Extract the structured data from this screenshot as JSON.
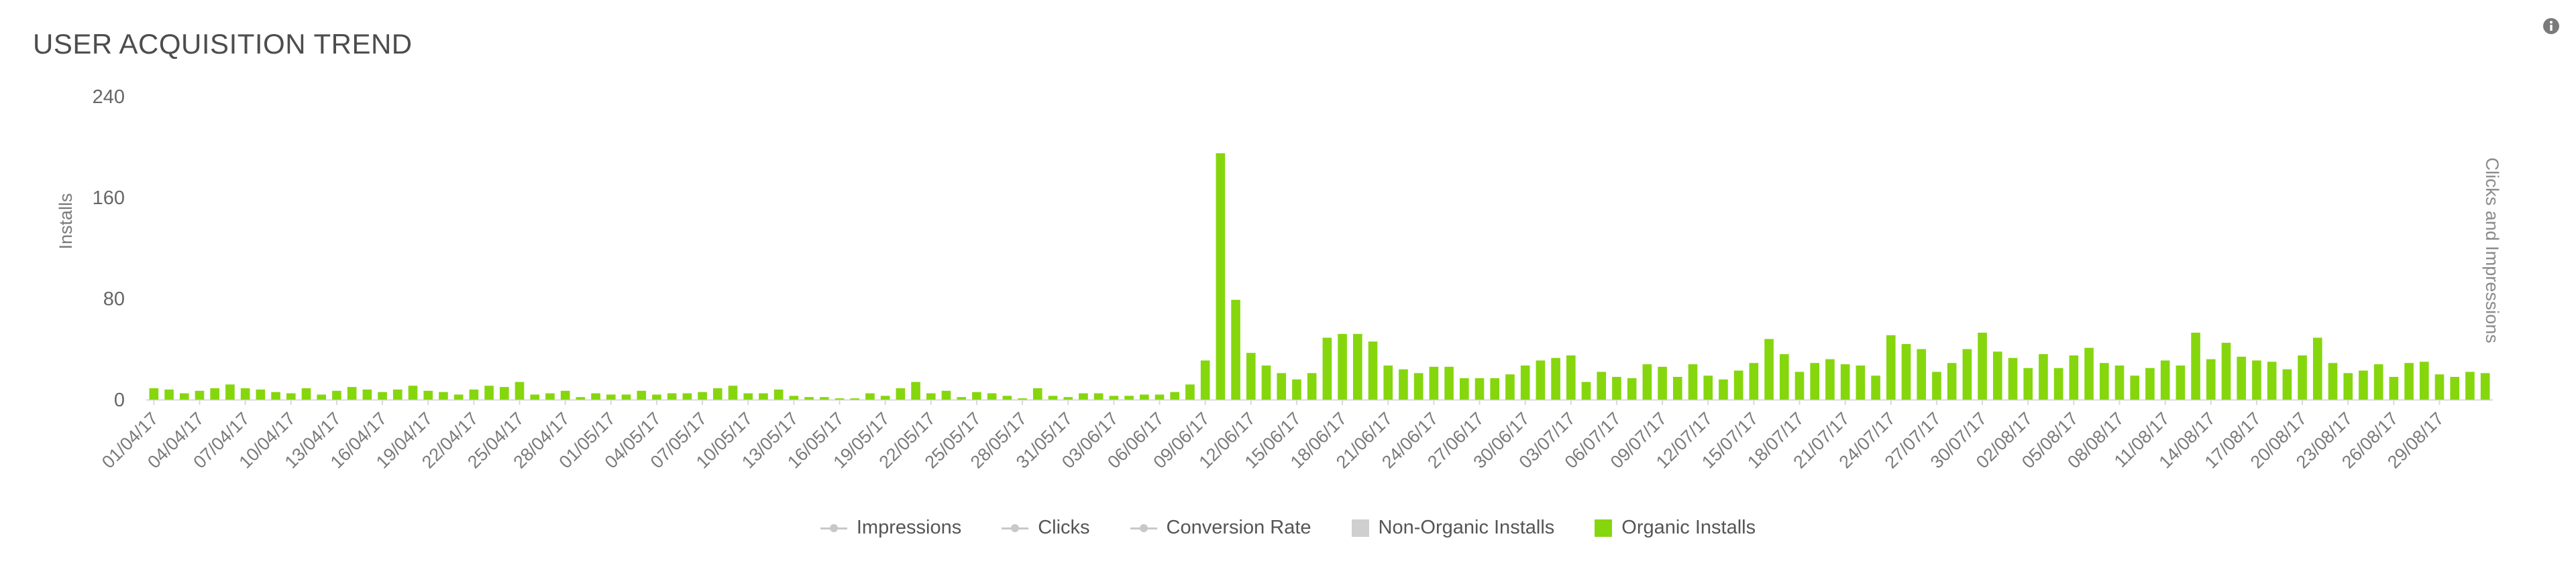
{
  "title": "USER ACQUISITION TREND",
  "icons": {
    "info": "info-icon"
  },
  "colors": {
    "organic": "#86d60e",
    "non_organic": "#cfcfcf",
    "line_series": "#c8c8c8",
    "axis": "#d8d8d8"
  },
  "legend": [
    {
      "label": "Impressions",
      "symbol": "line"
    },
    {
      "label": "Clicks",
      "symbol": "line"
    },
    {
      "label": "Conversion Rate",
      "symbol": "line"
    },
    {
      "label": "Non-Organic Installs",
      "symbol": "box",
      "color": "#cfcfcf"
    },
    {
      "label": "Organic Installs",
      "symbol": "box",
      "color": "#86d60e"
    }
  ],
  "chart_data": {
    "type": "bar",
    "ylabel": "Installs",
    "y2label": "Clicks and Impressions",
    "ylim": [
      0,
      240
    ],
    "yticks": [
      0,
      80,
      160,
      240
    ],
    "grid": false,
    "legend_position": "bottom",
    "x_tick_labels": [
      "01/04/17",
      "04/04/17",
      "07/04/17",
      "10/04/17",
      "13/04/17",
      "16/04/17",
      "19/04/17",
      "22/04/17",
      "25/04/17",
      "28/04/17",
      "01/05/17",
      "04/05/17",
      "07/05/17",
      "10/05/17",
      "13/05/17",
      "16/05/17",
      "19/05/17",
      "22/05/17",
      "25/05/17",
      "28/05/17",
      "31/05/17",
      "03/06/17",
      "06/06/17",
      "09/06/17",
      "12/06/17",
      "15/06/17",
      "18/06/17",
      "21/06/17",
      "24/06/17",
      "27/06/17",
      "30/06/17",
      "03/07/17",
      "06/07/17",
      "09/07/17",
      "12/07/17",
      "15/07/17",
      "18/07/17",
      "21/07/17",
      "24/07/17",
      "27/07/17",
      "30/07/17",
      "02/08/17",
      "05/08/17",
      "08/08/17",
      "11/08/17",
      "14/08/17",
      "17/08/17",
      "20/08/17",
      "23/08/17",
      "26/08/17",
      "29/08/17"
    ],
    "start_date": "01/04/17",
    "series": [
      {
        "name": "Organic Installs",
        "values": [
          9,
          8,
          5,
          7,
          9,
          12,
          9,
          8,
          6,
          5,
          9,
          4,
          7,
          10,
          8,
          6,
          8,
          11,
          7,
          6,
          4,
          8,
          11,
          10,
          14,
          4,
          5,
          7,
          2,
          5,
          4,
          4,
          7,
          4,
          5,
          5,
          6,
          9,
          11,
          5,
          5,
          8,
          3,
          2,
          2,
          1,
          1,
          5,
          3,
          9,
          14,
          5,
          7,
          2,
          6,
          5,
          3,
          1,
          9,
          3,
          2,
          5,
          5,
          3,
          3,
          4,
          4,
          6,
          12,
          31,
          195,
          79,
          37,
          27,
          21,
          16,
          21,
          49,
          52,
          52,
          46,
          27,
          24,
          21,
          26,
          26,
          17,
          17,
          17,
          20,
          27,
          31,
          33,
          35,
          14,
          22,
          18,
          17,
          28,
          26,
          18,
          28,
          19,
          16,
          23,
          29,
          48,
          36,
          22,
          29,
          32,
          28,
          27,
          19,
          51,
          44,
          40,
          22,
          29,
          40,
          53,
          38,
          33,
          25,
          36,
          25,
          35,
          41,
          29,
          27,
          19,
          25,
          31,
          27,
          53,
          32,
          45,
          34,
          31,
          30,
          24,
          35,
          49,
          29,
          21,
          23,
          28,
          18,
          29,
          30,
          20,
          18,
          22,
          21
        ]
      },
      {
        "name": "Non-Organic Installs",
        "values": []
      },
      {
        "name": "Impressions",
        "values": []
      },
      {
        "name": "Clicks",
        "values": []
      },
      {
        "name": "Conversion Rate",
        "values": []
      }
    ]
  }
}
